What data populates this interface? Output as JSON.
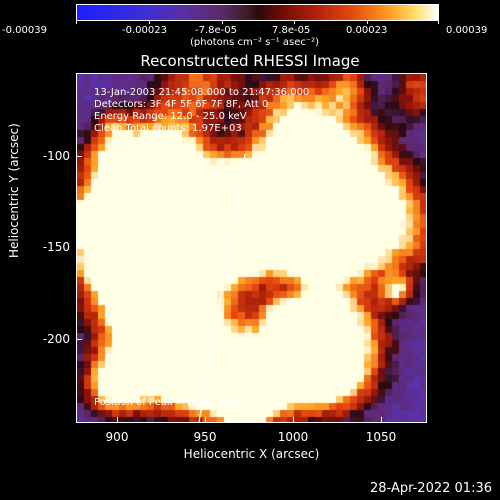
{
  "colorbar": {
    "ticks": [
      "-0.00039",
      "-0.00023",
      "-7.8e-05",
      "7.8e-05",
      "0.00023",
      "0.00039"
    ],
    "units": "(photons cm⁻² s⁻¹ asec⁻²)"
  },
  "plot": {
    "title": "Reconstructed RHESSI Image",
    "info_lines": [
      "13-Jan-2003 21:45:08.000 to 21:47:36.000",
      "Detectors: 3F 4F 5F 6F 7F 8F, Att 0",
      "Energy Range: 12.0 - 25.0 keV",
      "Clean     Total counts: 1.97E+03"
    ],
    "peak_label": "Position of Peak = [965,-130]",
    "xlabel": "Heliocentric X (arcsec)",
    "ylabel": "Heliocentric Y (arcsec)",
    "xticks": [
      "900",
      "950",
      "1000",
      "1050"
    ],
    "yticks": [
      "-100",
      "-150",
      "-200"
    ]
  },
  "timestamp": "28-Apr-2022 01:36"
}
